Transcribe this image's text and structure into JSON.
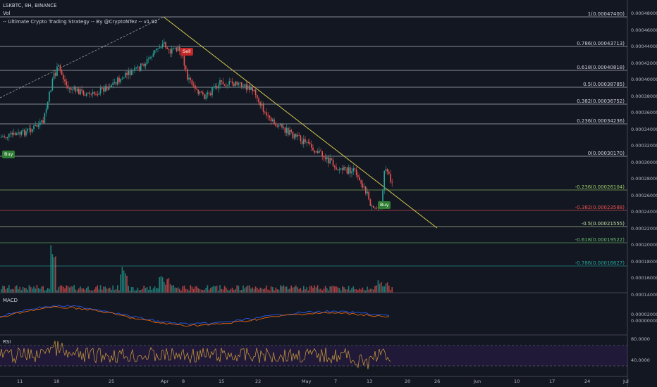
{
  "header": {
    "symbol_line": "LSKBTC, 8H, BINANCE",
    "vol_label": "Vol",
    "strategy_label": "-- Ultimate Crypto Trading Strategy -- By @CryptoNTez -- v1.92"
  },
  "panels": {
    "macd_label": "MACD",
    "rsi_label": "RSI"
  },
  "fib_levels": [
    {
      "label": "1(0.00047400)",
      "color": "#d1d4dc"
    },
    {
      "label": "0.786(0.00043713)",
      "color": "#d1d4dc"
    },
    {
      "label": "0.618(0.00040818)",
      "color": "#d1d4dc"
    },
    {
      "label": "0.5(0.00038785)",
      "color": "#d1d4dc"
    },
    {
      "label": "0.382(0.00036752)",
      "color": "#d1d4dc"
    },
    {
      "label": "0.236(0.00034236)",
      "color": "#d1d4dc"
    },
    {
      "label": "0(0.00030170)",
      "color": "#d1d4dc"
    },
    {
      "label": "-0.236(0.00026104)",
      "color": "#9ccc65"
    },
    {
      "label": "-0.382(0.00023588)",
      "color": "#ef5350"
    },
    {
      "label": "-0.5(0.00021555)",
      "color": "#c5e1a5"
    },
    {
      "label": "-0.618(0.00019522)",
      "color": "#66bb6a"
    },
    {
      "label": "-0.786(0.00016627)",
      "color": "#26a69a"
    }
  ],
  "price_axis": [
    "0.00048000",
    "0.00046000",
    "0.00044000",
    "0.00042000",
    "0.00040000",
    "0.00038000",
    "0.00036000",
    "0.00034000",
    "0.00032000",
    "0.00030000",
    "0.00028000",
    "0.00026000",
    "0.00024000",
    "0.00022000",
    "0.00020000",
    "0.00018000",
    "0.00016000",
    "0.00014000"
  ],
  "macd_axis": [
    "0.00002000",
    "0.00000000"
  ],
  "rsi_axis": [
    "80.0000",
    "40.0000"
  ],
  "time_axis": [
    "11",
    "18",
    "25",
    "Apr",
    "8",
    "15",
    "22",
    "May",
    "7",
    "13",
    "20",
    "26",
    "Jun",
    "10",
    "17",
    "24",
    "Jul"
  ],
  "signals": [
    {
      "label": "Buy",
      "type": "buy"
    },
    {
      "label": "Sell",
      "type": "sell"
    },
    {
      "label": "Buy",
      "type": "buy"
    }
  ],
  "colors": {
    "background": "#131722",
    "up": "#26a69a",
    "down": "#ef5350",
    "trendline": "#d4c84a",
    "macd": "#2962ff",
    "signal": "#ff6d00",
    "rsi": "#d4a23c"
  }
}
